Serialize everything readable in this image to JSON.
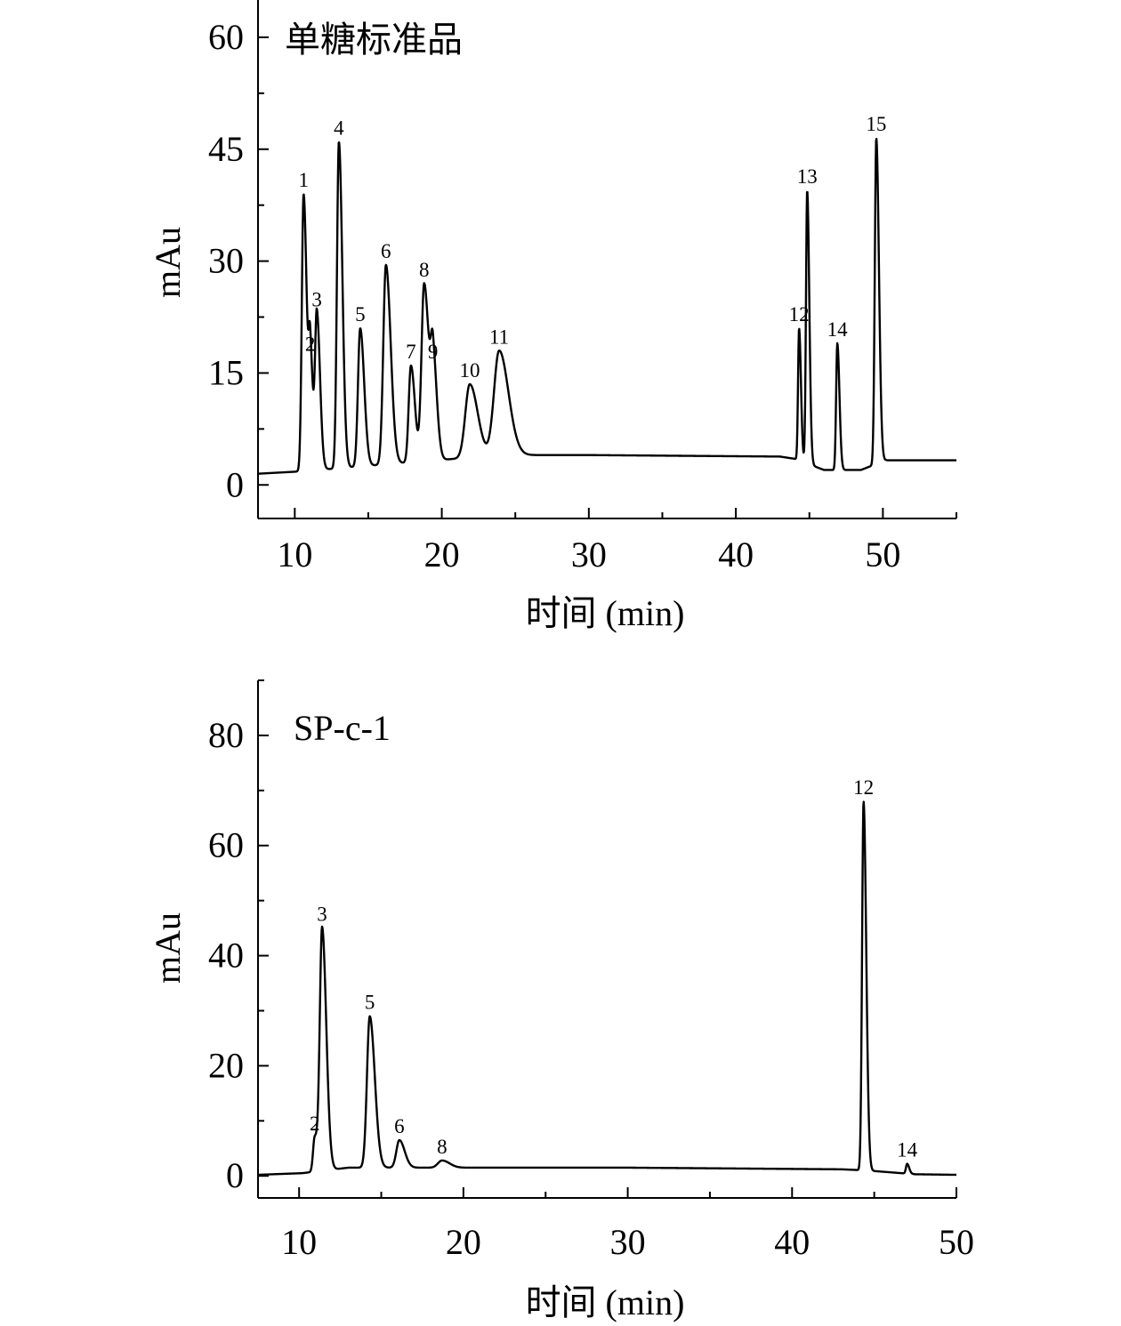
{
  "chart_data": [
    {
      "type": "line",
      "title": "单糖标准品",
      "xlabel": "时间 (min)",
      "ylabel": "mAu",
      "xlim": [
        7.5,
        55
      ],
      "ylim": [
        -4.5,
        65
      ],
      "xticks": [
        10,
        20,
        30,
        40,
        50
      ],
      "xticks_labels": [
        "10",
        "20",
        "30",
        "40",
        "50"
      ],
      "yticks": [
        0,
        15,
        30,
        45,
        60
      ],
      "yticks_labels": [
        "0",
        "15",
        "30",
        "45",
        "60"
      ],
      "grid": false,
      "baseline": [
        [
          7.5,
          1.5
        ],
        [
          10.3,
          1.8
        ],
        [
          24,
          4.0
        ],
        [
          30,
          4.0
        ],
        [
          43,
          3.8
        ],
        [
          44,
          3.5
        ],
        [
          46,
          2.0
        ],
        [
          48.5,
          2.0
        ],
        [
          50.2,
          3.3
        ],
        [
          55,
          3.3
        ]
      ],
      "peaks": [
        {
          "label": "1",
          "x": 10.6,
          "y": 39,
          "width": 0.12
        },
        {
          "label": "2",
          "x": 11.05,
          "y": 17,
          "width": 0.1
        },
        {
          "label": "3",
          "x": 11.5,
          "y": 23,
          "width": 0.12
        },
        {
          "label": "4",
          "x": 13.0,
          "y": 46,
          "width": 0.13
        },
        {
          "label": "5",
          "x": 14.45,
          "y": 21,
          "width": 0.15
        },
        {
          "label": "6",
          "x": 16.2,
          "y": 29.5,
          "width": 0.18
        },
        {
          "label": "7",
          "x": 17.9,
          "y": 16,
          "width": 0.15
        },
        {
          "label": "8",
          "x": 18.8,
          "y": 27,
          "width": 0.18
        },
        {
          "label": "9",
          "x": 19.4,
          "y": 16,
          "width": 0.15
        },
        {
          "label": "10",
          "x": 21.9,
          "y": 13.5,
          "width": 0.3
        },
        {
          "label": "11",
          "x": 23.9,
          "y": 18,
          "width": 0.35
        },
        {
          "label": "12",
          "x": 44.3,
          "y": 21,
          "width": 0.07
        },
        {
          "label": "13",
          "x": 44.85,
          "y": 39.5,
          "width": 0.08
        },
        {
          "label": "14",
          "x": 46.9,
          "y": 19,
          "width": 0.08
        },
        {
          "label": "15",
          "x": 49.55,
          "y": 46.5,
          "width": 0.1
        }
      ]
    },
    {
      "type": "line",
      "title": "SP-c-1",
      "xlabel": "时间 (min)",
      "ylabel": "mAu",
      "xlim": [
        7.5,
        50
      ],
      "ylim": [
        -4,
        90
      ],
      "xticks": [
        10,
        20,
        30,
        40,
        50
      ],
      "xticks_labels": [
        "10",
        "20",
        "30",
        "40",
        "50"
      ],
      "yticks": [
        0,
        20,
        40,
        60,
        80
      ],
      "yticks_labels": [
        "0",
        "20",
        "40",
        "60",
        "80"
      ],
      "grid": false,
      "baseline": [
        [
          7.5,
          0.2
        ],
        [
          10.2,
          0.5
        ],
        [
          13,
          1.5
        ],
        [
          19,
          1.5
        ],
        [
          30,
          1.5
        ],
        [
          43,
          1.2
        ],
        [
          44.5,
          1.0
        ],
        [
          47.5,
          0.3
        ],
        [
          50,
          0.2
        ]
      ],
      "peaks": [
        {
          "label": "2",
          "x": 10.95,
          "y": 7,
          "width": 0.1
        },
        {
          "label": "3",
          "x": 11.4,
          "y": 45,
          "width": 0.14
        },
        {
          "label": "5",
          "x": 14.3,
          "y": 29,
          "width": 0.17
        },
        {
          "label": "6",
          "x": 16.1,
          "y": 6.5,
          "width": 0.18
        },
        {
          "label": "8",
          "x": 18.7,
          "y": 2.8,
          "width": 0.25
        },
        {
          "label": "12",
          "x": 44.35,
          "y": 68,
          "width": 0.09
        },
        {
          "label": "14",
          "x": 47.0,
          "y": 2.2,
          "width": 0.07
        }
      ]
    }
  ]
}
